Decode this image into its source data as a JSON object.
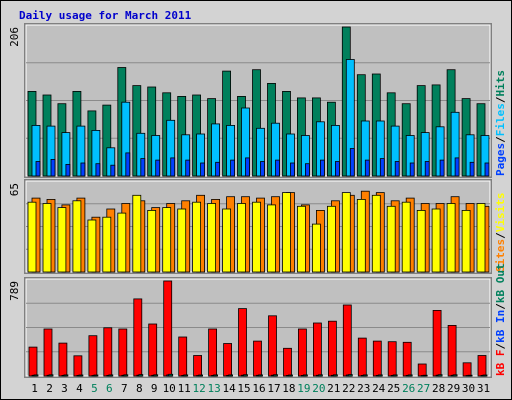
{
  "chart_title": "Daily usage for March 2011",
  "colors": {
    "hits": "#00805c",
    "files": "#00c0ff",
    "pages": "#0040ff",
    "visits": "#ffff00",
    "sites": "#ff8000",
    "kbin": "#0040ff",
    "kbout": "#00805c",
    "kbf": "#ff0000",
    "panel": "#c0c0c0",
    "title": "#0000cc"
  },
  "chart_data": [
    {
      "type": "bar",
      "panel": "top",
      "axis_max_label": "206",
      "ylim": [
        0,
        206
      ],
      "grid": true,
      "categories": [
        "1",
        "2",
        "3",
        "4",
        "5",
        "6",
        "7",
        "8",
        "9",
        "10",
        "11",
        "12",
        "13",
        "14",
        "15",
        "16",
        "17",
        "18",
        "19",
        "20",
        "21",
        "22",
        "23",
        "24",
        "25",
        "26",
        "27",
        "28",
        "29",
        "30",
        "31"
      ],
      "legend": [
        {
          "name": "Pages",
          "color": "#0040ff"
        },
        {
          "name": "/",
          "color": "#000000"
        },
        {
          "name": "Files",
          "color": "#00c0ff"
        },
        {
          "name": "/",
          "color": "#000000"
        },
        {
          "name": "Hits",
          "color": "#00805c"
        }
      ],
      "series": [
        {
          "name": "Hits",
          "values": [
            117,
            112,
            100,
            117,
            90,
            98,
            150,
            125,
            123,
            115,
            110,
            112,
            107,
            145,
            110,
            147,
            128,
            117,
            108,
            108,
            102,
            206,
            140,
            141,
            115,
            100,
            125,
            126,
            147,
            107,
            100
          ]
        },
        {
          "name": "Files",
          "values": [
            70,
            69,
            60,
            69,
            63,
            39,
            102,
            59,
            56,
            77,
            57,
            58,
            72,
            70,
            94,
            66,
            73,
            58,
            56,
            75,
            70,
            161,
            76,
            76,
            69,
            56,
            60,
            68,
            88,
            57,
            56
          ]
        },
        {
          "name": "Pages",
          "values": [
            20,
            23,
            16,
            18,
            17,
            15,
            32,
            24,
            22,
            25,
            22,
            18,
            19,
            22,
            25,
            20,
            22,
            18,
            17,
            22,
            20,
            38,
            22,
            24,
            20,
            18,
            20,
            22,
            25,
            19,
            18
          ]
        }
      ]
    },
    {
      "type": "bar",
      "panel": "middle",
      "axis_max_label": "65",
      "ylim": [
        0,
        65
      ],
      "grid": true,
      "categories": [
        "1",
        "2",
        "3",
        "4",
        "5",
        "6",
        "7",
        "8",
        "9",
        "10",
        "11",
        "12",
        "13",
        "14",
        "15",
        "16",
        "17",
        "18",
        "19",
        "20",
        "21",
        "22",
        "23",
        "24",
        "25",
        "26",
        "27",
        "28",
        "29",
        "30",
        "31"
      ],
      "legend": [
        {
          "name": "Sites",
          "color": "#ff8000"
        },
        {
          "name": "/",
          "color": "#000000"
        },
        {
          "name": "Visits",
          "color": "#ffff00"
        }
      ],
      "series": [
        {
          "name": "Sites",
          "values": [
            54,
            53,
            49,
            54,
            40,
            46,
            50,
            52,
            47,
            50,
            52,
            56,
            53,
            55,
            55,
            54,
            55,
            58,
            49,
            45,
            52,
            56,
            59,
            58,
            52,
            54,
            50,
            50,
            55,
            50,
            48
          ]
        },
        {
          "name": "Visits",
          "values": [
            51,
            50,
            47,
            52,
            38,
            40,
            43,
            56,
            45,
            47,
            46,
            51,
            50,
            46,
            50,
            51,
            49,
            58,
            48,
            35,
            48,
            58,
            53,
            56,
            48,
            51,
            45,
            46,
            50,
            45,
            50
          ]
        }
      ]
    },
    {
      "type": "bar",
      "panel": "bottom",
      "axis_max_label": "789",
      "ylim": [
        0,
        789
      ],
      "grid": true,
      "categories": [
        "1",
        "2",
        "3",
        "4",
        "5",
        "6",
        "7",
        "8",
        "9",
        "10",
        "11",
        "12",
        "13",
        "14",
        "15",
        "16",
        "17",
        "18",
        "19",
        "20",
        "21",
        "22",
        "23",
        "24",
        "25",
        "26",
        "27",
        "28",
        "29",
        "30",
        "31"
      ],
      "weekend_days": [
        "5",
        "6",
        "12",
        "13",
        "19",
        "20",
        "26",
        "27"
      ],
      "legend": [
        {
          "name": "kB F",
          "color": "#ff0000"
        },
        {
          "name": "/",
          "color": "#000000"
        },
        {
          "name": "kB In",
          "color": "#0040ff"
        },
        {
          "name": "/",
          "color": "#000000"
        },
        {
          "name": "kB Out",
          "color": "#00805c"
        }
      ],
      "series": [
        {
          "name": "kB F",
          "values": [
            240,
            390,
            273,
            168,
            335,
            400,
            390,
            640,
            432,
            789,
            324,
            170,
            390,
            270,
            560,
            290,
            500,
            230,
            390,
            440,
            455,
            590,
            315,
            290,
            285,
            280,
            100,
            545,
            420,
            110,
            170
          ]
        },
        {
          "name": "kB In",
          "values": [
            6,
            6,
            5,
            5,
            4,
            5,
            6,
            7,
            6,
            9,
            5,
            4,
            5,
            5,
            7,
            6,
            7,
            5,
            5,
            6,
            6,
            8,
            5,
            5,
            5,
            5,
            4,
            7,
            6,
            4,
            5
          ]
        },
        {
          "name": "kB Out",
          "values": [
            9,
            10,
            9,
            8,
            8,
            9,
            10,
            12,
            10,
            14,
            9,
            8,
            9,
            9,
            11,
            9,
            11,
            8,
            9,
            10,
            10,
            12,
            9,
            9,
            9,
            9,
            7,
            11,
            10,
            7,
            8
          ]
        }
      ]
    }
  ]
}
